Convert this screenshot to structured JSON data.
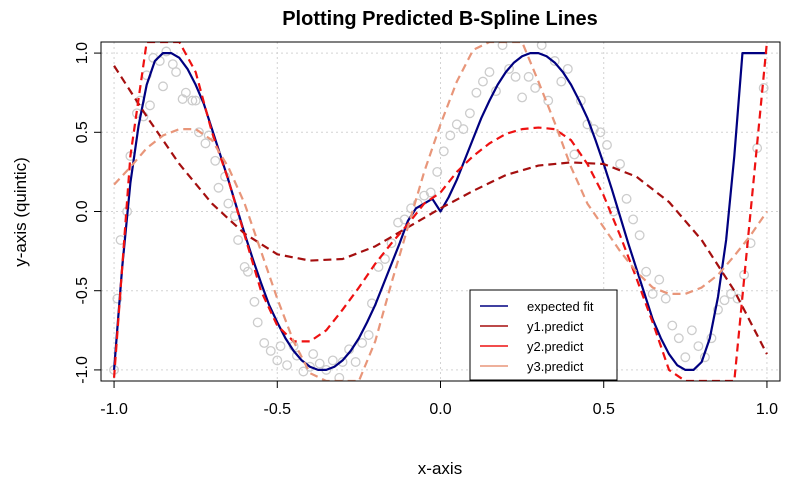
{
  "chart_data": {
    "type": "line",
    "title": "Plotting Predicted B-Spline Lines",
    "xlabel": "x-axis",
    "ylabel": "y-axis (quintic)",
    "xlim": [
      -1.04,
      1.04
    ],
    "ylim": [
      -1.07,
      1.07
    ],
    "xticks": [
      -1.0,
      -0.5,
      0.0,
      0.5,
      1.0
    ],
    "yticks": [
      -1.0,
      -0.5,
      0.0,
      0.5,
      1.0
    ],
    "xtick_labels": [
      "-1.0",
      "-0.5",
      "0.0",
      "0.5",
      "1.0"
    ],
    "ytick_labels": [
      "-1.0",
      "-0.5",
      "0.0",
      "0.5",
      "1.0"
    ],
    "grid": true,
    "legend_position": "bottom-right",
    "scatter": {
      "color": "#cccccc",
      "x": [
        -1.0,
        -0.99,
        -0.98,
        -0.96,
        -0.95,
        -0.93,
        -0.92,
        -0.91,
        -0.9,
        -0.89,
        -0.88,
        -0.86,
        -0.85,
        -0.84,
        -0.82,
        -0.81,
        -0.79,
        -0.78,
        -0.76,
        -0.75,
        -0.74,
        -0.72,
        -0.71,
        -0.69,
        -0.68,
        -0.66,
        -0.65,
        -0.63,
        -0.62,
        -0.6,
        -0.59,
        -0.57,
        -0.56,
        -0.54,
        -0.52,
        -0.5,
        -0.49,
        -0.47,
        -0.45,
        -0.44,
        -0.42,
        -0.4,
        -0.39,
        -0.37,
        -0.35,
        -0.33,
        -0.31,
        -0.3,
        -0.28,
        -0.26,
        -0.24,
        -0.22,
        -0.21,
        -0.19,
        -0.17,
        -0.15,
        -0.13,
        -0.11,
        -0.09,
        -0.07,
        -0.05,
        -0.03,
        -0.01,
        0.01,
        0.03,
        0.05,
        0.07,
        0.09,
        0.11,
        0.13,
        0.15,
        0.17,
        0.19,
        0.21,
        0.23,
        0.25,
        0.27,
        0.29,
        0.31,
        0.33,
        0.35,
        0.37,
        0.39,
        0.41,
        0.43,
        0.45,
        0.47,
        0.49,
        0.51,
        0.53,
        0.55,
        0.57,
        0.59,
        0.61,
        0.63,
        0.65,
        0.67,
        0.69,
        0.71,
        0.73,
        0.75,
        0.77,
        0.79,
        0.81,
        0.83,
        0.85,
        0.87,
        0.89,
        0.91,
        0.93,
        0.95,
        0.97,
        0.99
      ],
      "y": [
        -1.0,
        -0.55,
        -0.18,
        0.0,
        0.35,
        0.62,
        0.7,
        0.6,
        0.86,
        0.67,
        0.97,
        0.95,
        0.79,
        1.01,
        0.93,
        0.88,
        0.71,
        0.75,
        0.7,
        0.7,
        0.5,
        0.43,
        0.48,
        0.32,
        0.15,
        0.22,
        0.05,
        -0.03,
        -0.18,
        -0.35,
        -0.38,
        -0.57,
        -0.7,
        -0.83,
        -0.88,
        -0.94,
        -0.85,
        -0.97,
        -0.85,
        -0.91,
        -1.01,
        -0.98,
        -0.9,
        -0.96,
        -1.0,
        -0.94,
        -1.05,
        -0.95,
        -0.87,
        -0.95,
        -0.83,
        -0.78,
        -0.58,
        -0.35,
        -0.3,
        -0.2,
        -0.07,
        -0.05,
        0.02,
        0.05,
        0.1,
        0.12,
        0.25,
        0.38,
        0.48,
        0.55,
        0.52,
        0.62,
        0.75,
        0.82,
        0.88,
        0.76,
        1.05,
        0.9,
        0.85,
        0.72,
        0.85,
        0.78,
        1.05,
        0.7,
        0.95,
        0.82,
        0.9,
        0.36,
        0.7,
        0.55,
        0.52,
        0.5,
        0.42,
        0.0,
        0.3,
        0.08,
        -0.05,
        -0.15,
        -0.38,
        -0.52,
        -0.43,
        -0.55,
        -0.72,
        -0.8,
        -0.92,
        -0.75,
        -0.85,
        -0.92,
        -0.8,
        -0.62,
        -0.56,
        -0.52,
        -0.55,
        -0.4,
        -0.2,
        0.4,
        0.78
      ]
    },
    "series": [
      {
        "name": "expected fit",
        "color": "#000080",
        "dash": "solid",
        "x": [
          -1.0,
          -0.975,
          -0.95,
          -0.925,
          -0.9,
          -0.875,
          -0.85,
          -0.825,
          -0.8,
          -0.775,
          -0.75,
          -0.725,
          -0.7,
          -0.675,
          -0.65,
          -0.625,
          -0.6,
          -0.575,
          -0.55,
          -0.525,
          -0.5,
          -0.475,
          -0.45,
          -0.425,
          -0.4,
          -0.375,
          -0.35,
          -0.325,
          -0.3,
          -0.275,
          -0.25,
          -0.225,
          -0.2,
          -0.175,
          -0.15,
          -0.125,
          -0.1,
          -0.075,
          -0.05,
          -0.025,
          0.0,
          0.025,
          0.05,
          0.075,
          0.1,
          0.125,
          0.15,
          0.175,
          0.2,
          0.225,
          0.25,
          0.275,
          0.3,
          0.325,
          0.35,
          0.375,
          0.4,
          0.425,
          0.45,
          0.475,
          0.5,
          0.525,
          0.55,
          0.575,
          0.6,
          0.625,
          0.65,
          0.675,
          0.7,
          0.725,
          0.75,
          0.775,
          0.8,
          0.825,
          0.85,
          0.875,
          0.9,
          0.925,
          0.95,
          0.975,
          1.0
        ],
        "y": [
          -1.0,
          -0.35,
          0.18,
          0.54,
          0.8,
          0.95,
          1.0,
          1.0,
          0.97,
          0.9,
          0.8,
          0.68,
          0.52,
          0.36,
          0.2,
          0.03,
          -0.14,
          -0.3,
          -0.45,
          -0.59,
          -0.7,
          -0.8,
          -0.88,
          -0.94,
          -0.98,
          -1.0,
          -1.0,
          -0.98,
          -0.94,
          -0.88,
          -0.8,
          -0.7,
          -0.59,
          -0.46,
          -0.33,
          -0.2,
          -0.06,
          0.02,
          0.05,
          0.08,
          0.0,
          0.09,
          0.2,
          0.33,
          0.46,
          0.59,
          0.7,
          0.8,
          0.88,
          0.94,
          0.98,
          1.0,
          1.0,
          0.98,
          0.94,
          0.88,
          0.8,
          0.7,
          0.59,
          0.45,
          0.3,
          0.14,
          -0.03,
          -0.2,
          -0.36,
          -0.52,
          -0.68,
          -0.8,
          -0.9,
          -0.97,
          -1.0,
          -1.0,
          -0.95,
          -0.8,
          -0.54,
          -0.18,
          0.35,
          1.0,
          1.0,
          1.0,
          1.0
        ]
      },
      {
        "name": "y1.predict",
        "color": "#a50f0f",
        "dash": "dashed",
        "x": [
          -1.0,
          -0.9,
          -0.8,
          -0.7,
          -0.6,
          -0.5,
          -0.4,
          -0.3,
          -0.2,
          -0.1,
          0.0,
          0.1,
          0.2,
          0.3,
          0.4,
          0.5,
          0.6,
          0.7,
          0.8,
          0.9,
          1.0
        ],
        "y": [
          0.92,
          0.6,
          0.3,
          0.05,
          -0.14,
          -0.27,
          -0.31,
          -0.3,
          -0.22,
          -0.1,
          0.02,
          0.13,
          0.23,
          0.29,
          0.31,
          0.3,
          0.22,
          0.06,
          -0.18,
          -0.5,
          -0.9
        ]
      },
      {
        "name": "y2.predict",
        "color": "#ee1111",
        "dash": "dashed",
        "x": [
          -1.0,
          -0.95,
          -0.9,
          -0.85,
          -0.8,
          -0.75,
          -0.7,
          -0.65,
          -0.6,
          -0.55,
          -0.5,
          -0.45,
          -0.4,
          -0.35,
          -0.3,
          -0.25,
          -0.2,
          -0.15,
          -0.1,
          -0.05,
          0.0,
          0.05,
          0.1,
          0.15,
          0.2,
          0.25,
          0.3,
          0.35,
          0.4,
          0.45,
          0.5,
          0.55,
          0.6,
          0.65,
          0.7,
          0.75,
          0.8,
          0.85,
          0.9,
          0.95,
          1.0
        ],
        "y": [
          -1.05,
          0.35,
          1.07,
          1.07,
          1.07,
          0.88,
          0.5,
          0.2,
          -0.15,
          -0.5,
          -0.72,
          -0.82,
          -0.82,
          -0.75,
          -0.62,
          -0.48,
          -0.33,
          -0.2,
          -0.08,
          0.05,
          0.12,
          0.25,
          0.35,
          0.43,
          0.49,
          0.52,
          0.53,
          0.52,
          0.45,
          0.3,
          0.1,
          -0.15,
          -0.42,
          -0.7,
          -1.0,
          -1.07,
          -1.07,
          -1.07,
          -1.07,
          0.0,
          1.07
        ]
      },
      {
        "name": "y3.predict",
        "color": "#e8967a",
        "dash": "dashed",
        "x": [
          -1.0,
          -0.95,
          -0.9,
          -0.85,
          -0.8,
          -0.75,
          -0.7,
          -0.65,
          -0.6,
          -0.55,
          -0.5,
          -0.45,
          -0.4,
          -0.35,
          -0.3,
          -0.25,
          -0.2,
          -0.15,
          -0.1,
          -0.05,
          0.0,
          0.05,
          0.1,
          0.15,
          0.2,
          0.25,
          0.3,
          0.35,
          0.4,
          0.45,
          0.5,
          0.55,
          0.6,
          0.65,
          0.7,
          0.75,
          0.8,
          0.85,
          0.9,
          0.95,
          1.0
        ],
        "y": [
          0.17,
          0.28,
          0.4,
          0.48,
          0.52,
          0.52,
          0.45,
          0.28,
          0.05,
          -0.25,
          -0.55,
          -0.82,
          -1.02,
          -1.07,
          -1.07,
          -1.07,
          -0.82,
          -0.45,
          -0.1,
          0.25,
          0.55,
          0.82,
          1.02,
          1.07,
          1.07,
          1.07,
          0.82,
          0.56,
          0.28,
          0.05,
          -0.1,
          -0.25,
          -0.38,
          -0.48,
          -0.52,
          -0.52,
          -0.48,
          -0.4,
          -0.28,
          -0.15,
          0.0
        ]
      }
    ]
  }
}
